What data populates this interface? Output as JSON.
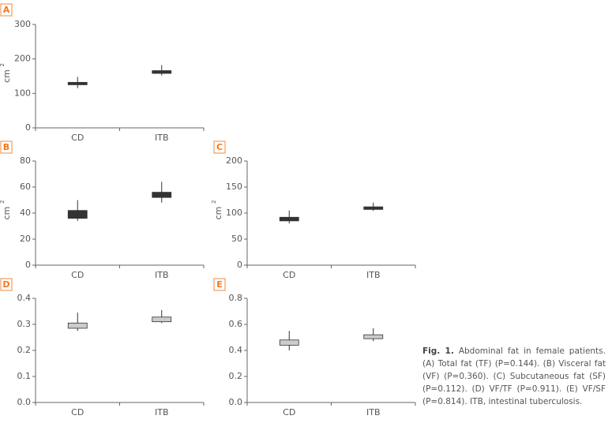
{
  "chart_data": [
    {
      "type": "box",
      "panel": "A",
      "y_label": "cm",
      "y_label_sup": "2",
      "categories": [
        "CD",
        "ITB"
      ],
      "color": "#333333",
      "whislo": [
        115,
        152
      ],
      "q1": [
        125,
        158
      ],
      "q3": [
        132,
        166
      ],
      "whishi": [
        148,
        182
      ],
      "ylim": [
        0,
        300
      ],
      "yticks": [
        0,
        100,
        200,
        300
      ]
    },
    {
      "type": "box",
      "panel": "B",
      "y_label": "cm",
      "y_label_sup": "2",
      "categories": [
        "CD",
        "ITB"
      ],
      "color": "#333333",
      "whislo": [
        34,
        48
      ],
      "q1": [
        36,
        52
      ],
      "q3": [
        42,
        56
      ],
      "whishi": [
        50,
        64
      ],
      "ylim": [
        0,
        80
      ],
      "yticks": [
        0,
        20,
        40,
        60,
        80
      ]
    },
    {
      "type": "box",
      "panel": "C",
      "y_label": "cm",
      "y_label_sup": "2",
      "categories": [
        "CD",
        "ITB"
      ],
      "color": "#333333",
      "whislo": [
        80,
        104
      ],
      "q1": [
        85,
        107
      ],
      "q3": [
        92,
        112
      ],
      "whishi": [
        105,
        120
      ],
      "ylim": [
        0,
        200
      ],
      "yticks": [
        0,
        50,
        100,
        150,
        200
      ]
    },
    {
      "type": "box",
      "panel": "D",
      "categories": [
        "CD",
        "ITB"
      ],
      "color": "#cccccc",
      "whislo": [
        0.275,
        0.305
      ],
      "q1": [
        0.285,
        0.31
      ],
      "q3": [
        0.305,
        0.328
      ],
      "whishi": [
        0.345,
        0.355
      ],
      "ylim": [
        0,
        0.4
      ],
      "yticks": [
        {
          "value": 0,
          "label": "0.0"
        },
        0.1,
        0.2,
        0.3,
        0.4
      ]
    },
    {
      "type": "box",
      "panel": "E",
      "categories": [
        "CD",
        "ITB"
      ],
      "color": "#cccccc",
      "whislo": [
        0.4,
        0.47
      ],
      "q1": [
        0.44,
        0.49
      ],
      "q3": [
        0.48,
        0.52
      ],
      "whishi": [
        0.55,
        0.57
      ],
      "ylim": [
        0,
        0.8
      ],
      "yticks": [
        {
          "value": 0,
          "label": "0.0"
        },
        0.2,
        0.4,
        0.6,
        0.8
      ]
    }
  ],
  "caption": {
    "label": "Fig. 1.",
    "text": "Abdominal fat in female patients. (A) Total fat (TF) (P=0.144). (B) Visceral fat (VF) (P=0.360). (C) Subcutaneous fat (SF) (P=0.112). (D) VF/TF (P=0.911). (E) VF/SF (P=0.814). ITB, intestinal tuberculosis."
  }
}
